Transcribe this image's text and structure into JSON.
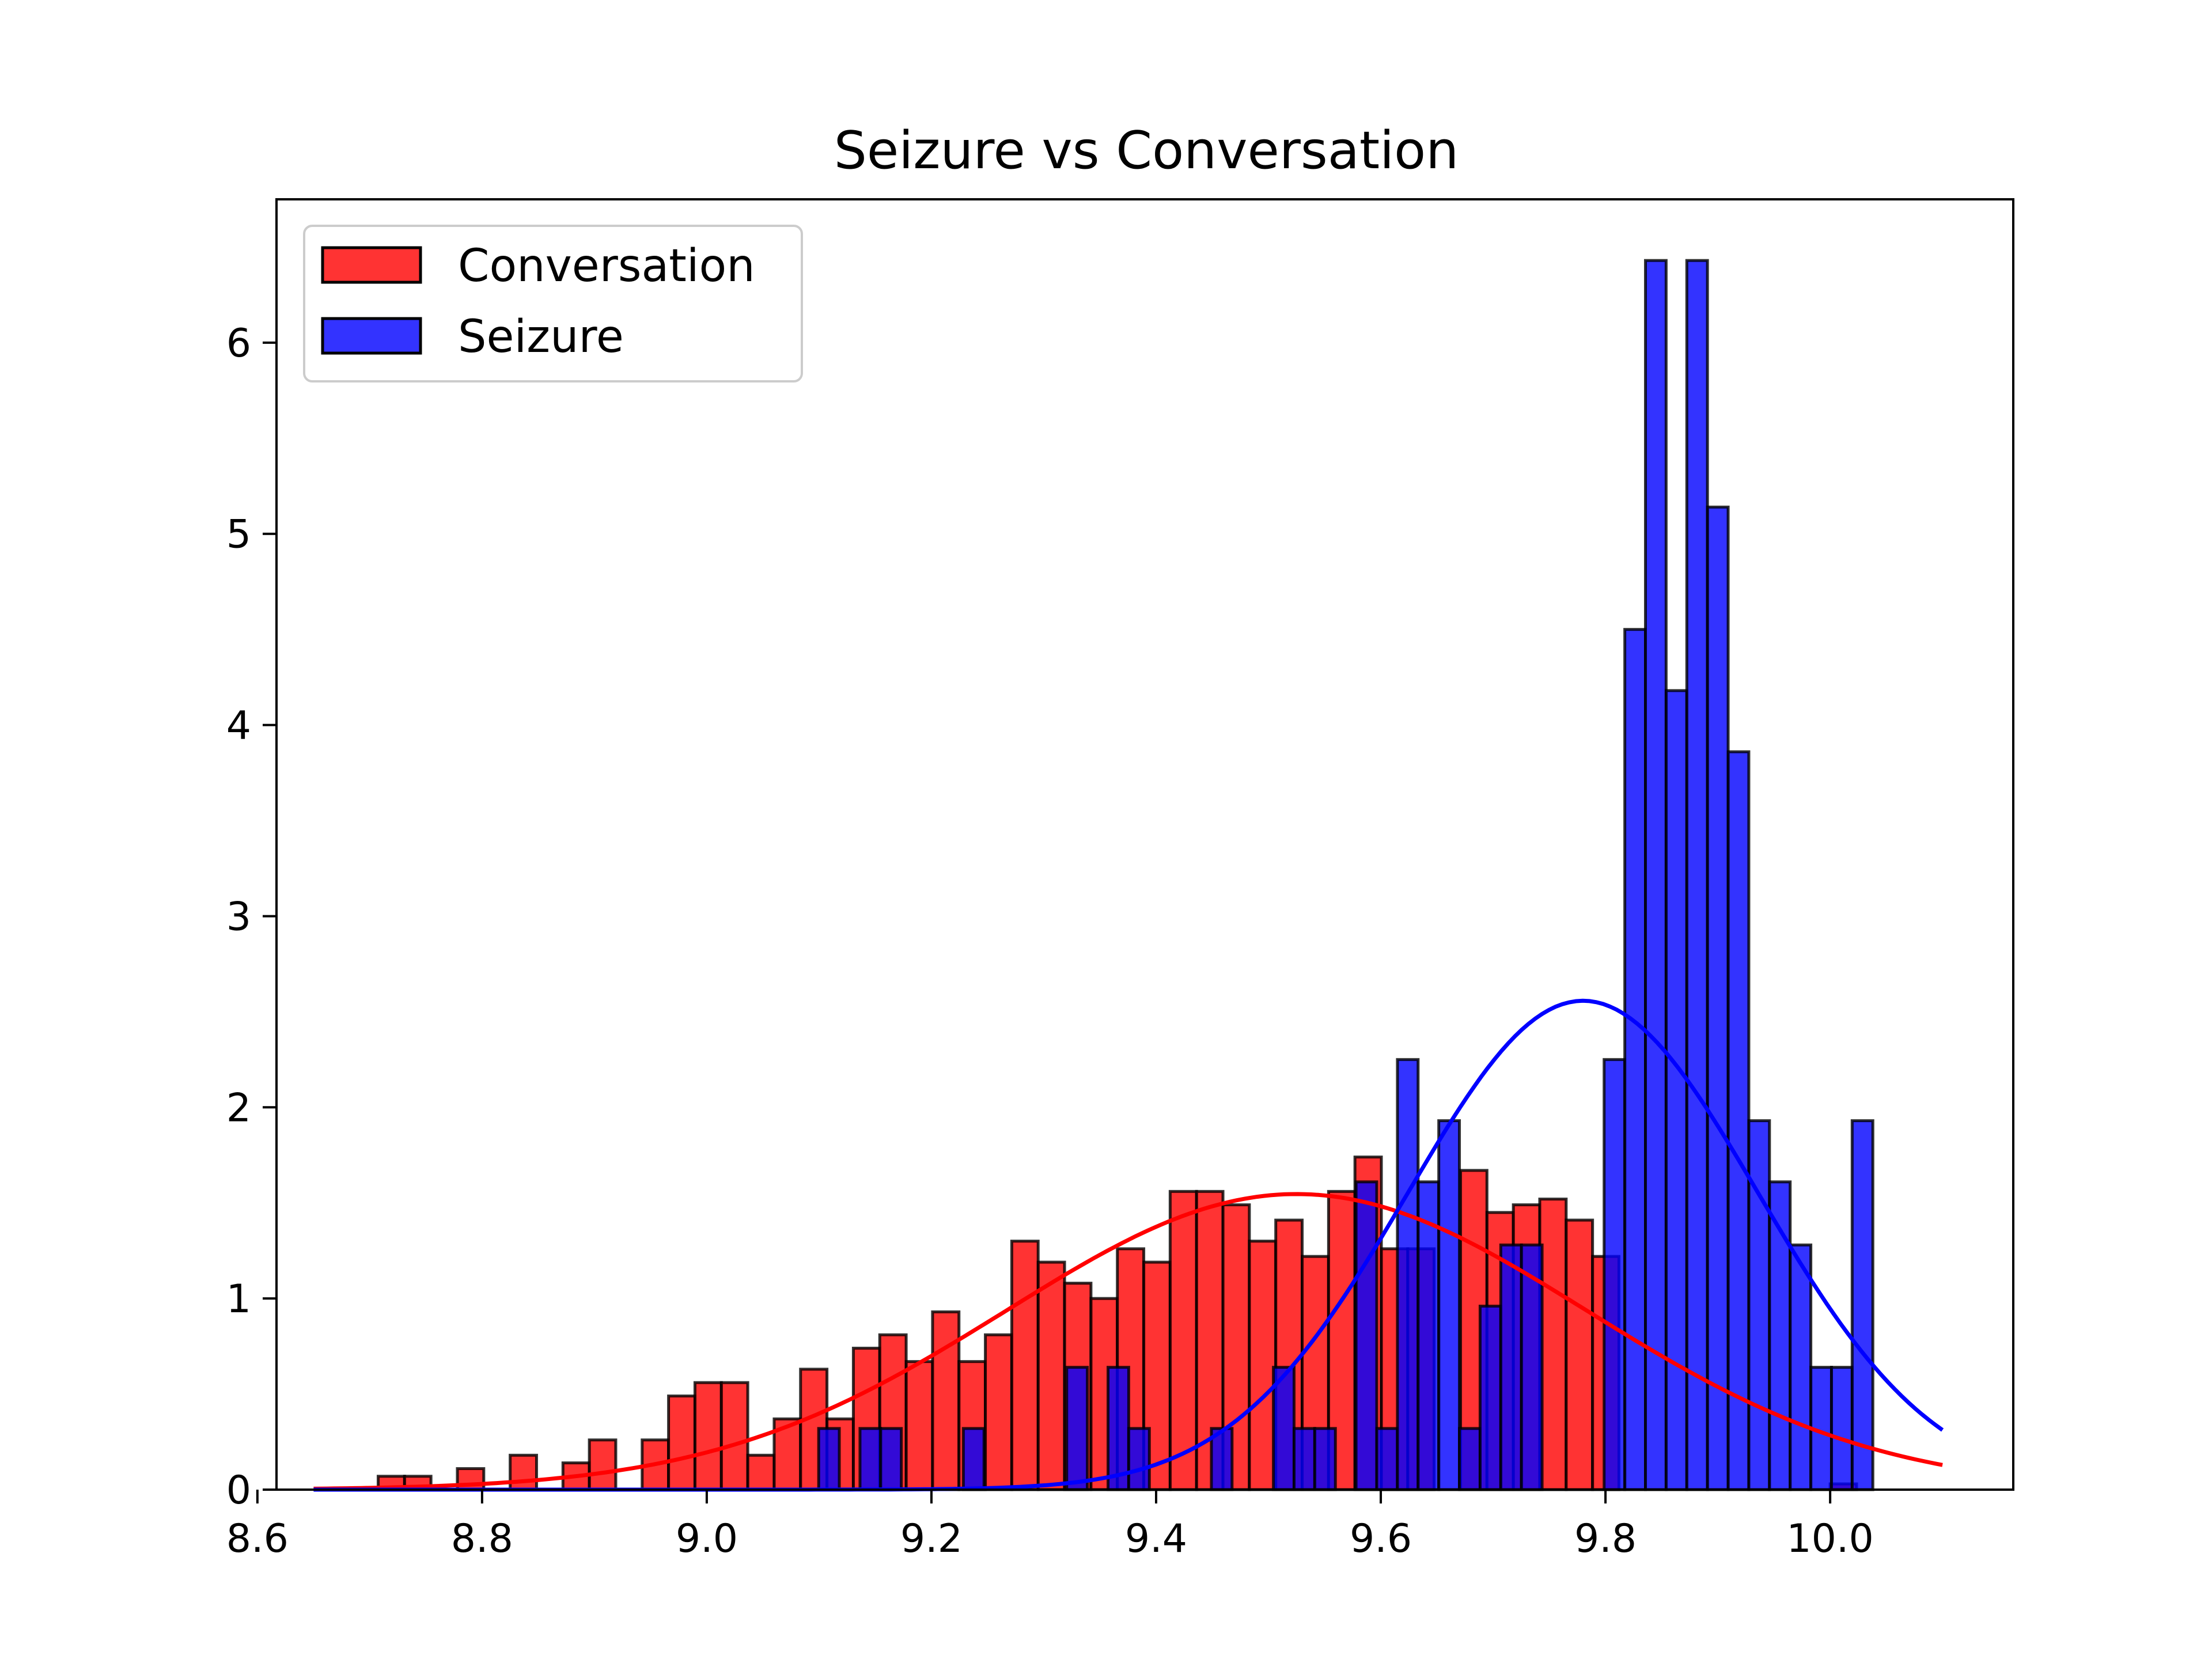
{
  "chart_data": {
    "type": "bar",
    "title": "Seizure vs Conversation",
    "xlabel": "",
    "ylabel": "",
    "xlim": [
      8.617,
      10.163
    ],
    "ylim": [
      0,
      6.75
    ],
    "xticks": [
      "8.6",
      "8.8",
      "9.0",
      "9.2",
      "9.4",
      "9.6",
      "9.8",
      "10.0"
    ],
    "xtick_values": [
      8.6,
      8.8,
      9.0,
      9.2,
      9.4,
      9.6,
      9.8,
      10.0
    ],
    "yticks": [
      "0",
      "1",
      "2",
      "3",
      "4",
      "5",
      "6"
    ],
    "ytick_values": [
      0,
      1,
      2,
      3,
      4,
      5,
      6
    ],
    "legend_position": "top-left",
    "grid": false,
    "series": [
      {
        "name": "Conversation",
        "kind": "histogram",
        "color": "#ff0000",
        "bin_start": 8.7075,
        "bin_width": 0.0235,
        "values": [
          0.07,
          0.07,
          0.0,
          0.11,
          0.0,
          0.18,
          0.0,
          0.14,
          0.26,
          0.0,
          0.26,
          0.49,
          0.56,
          0.56,
          0.18,
          0.37,
          0.63,
          0.37,
          0.74,
          0.81,
          0.67,
          0.93,
          0.67,
          0.81,
          1.3,
          1.19,
          1.08,
          1.0,
          1.26,
          1.19,
          1.56,
          1.56,
          1.49,
          1.3,
          1.41,
          1.22,
          1.56,
          1.74,
          1.26,
          1.26,
          0.0,
          1.67,
          1.45,
          1.49,
          1.52,
          1.41,
          1.22,
          0.0,
          0.0,
          0.0,
          0.0,
          0.0,
          0.0,
          0.0,
          0.0,
          0.03
        ]
      },
      {
        "name": "Seizure",
        "kind": "histogram",
        "color": "#0000ff",
        "bin_start": 8.658,
        "bin_width": 0.0184,
        "values": [
          0,
          0,
          0,
          0,
          0,
          0,
          0,
          0,
          0,
          0,
          0,
          0,
          0,
          0,
          0,
          0,
          0,
          0,
          0,
          0,
          0,
          0,
          0,
          0,
          0.32,
          0,
          0.32,
          0.32,
          0,
          0,
          0,
          0.32,
          0,
          0,
          0,
          0,
          0.64,
          0,
          0.64,
          0.32,
          0,
          0,
          0,
          0.32,
          0,
          0,
          0.64,
          0.32,
          0.32,
          0,
          1.61,
          0.32,
          2.25,
          1.61,
          1.93,
          0.32,
          0.96,
          1.28,
          1.28,
          0,
          0,
          0,
          2.25,
          4.5,
          6.43,
          4.18,
          6.43,
          5.14,
          3.86,
          1.93,
          1.61,
          1.28,
          0.64,
          0.64,
          1.93
        ]
      }
    ],
    "curves": [
      {
        "name": "Conversation",
        "color": "#ff0000",
        "kind": "normal_pdf",
        "mean": 9.525,
        "std": 0.258,
        "x_range": [
          8.65,
          10.1
        ]
      },
      {
        "name": "Seizure",
        "color": "#0000ff",
        "kind": "normal_pdf",
        "mean": 9.78,
        "std": 0.156,
        "x_range": [
          8.65,
          10.1
        ]
      }
    ]
  }
}
